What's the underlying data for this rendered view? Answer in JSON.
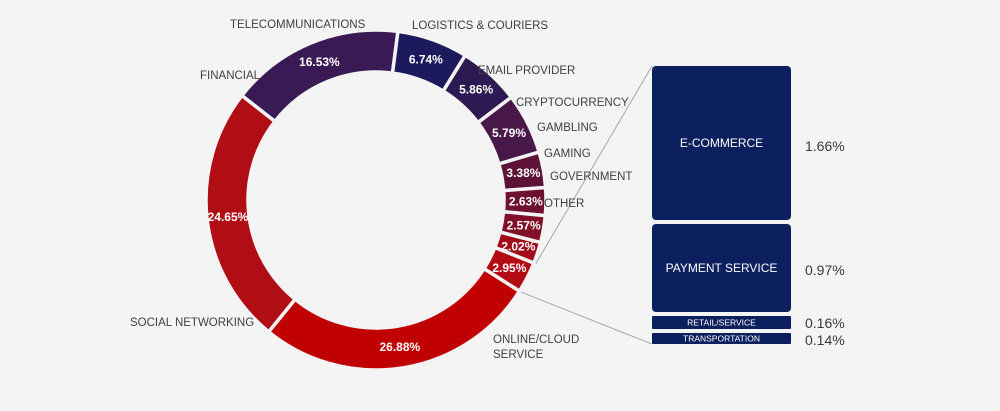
{
  "chart_data": [
    {
      "type": "pie",
      "variant": "donut",
      "series": [
        {
          "label": "ONLINE/CLOUD SERVICE",
          "value": 26.88,
          "value_label": "26.88%",
          "color": "#c00000"
        },
        {
          "label": "SOCIAL NETWORKING",
          "value": 24.65,
          "value_label": "24.65%",
          "color": "#b00d14"
        },
        {
          "label": "FINANCIAL",
          "value": 16.53,
          "value_label": "16.53%",
          "color": "#3a1a55"
        },
        {
          "label": "TELECOMMUNICATIONS",
          "value": 6.74,
          "value_label": "6.74%",
          "color": "#1c1a5c"
        },
        {
          "label": "LOGISTICS & COURIERS",
          "value": 5.86,
          "value_label": "5.86%",
          "color": "#2e1a52"
        },
        {
          "label": "EMAIL PROVIDER",
          "value": 5.79,
          "value_label": "5.79%",
          "color": "#481848"
        },
        {
          "label": "CRYPTOCURRENCY",
          "value": 3.38,
          "value_label": "3.38%",
          "color": "#5e1238"
        },
        {
          "label": "GAMBLING",
          "value": 2.63,
          "value_label": "2.63%",
          "color": "#6e1030"
        },
        {
          "label": "GAMING",
          "value": 2.57,
          "value_label": "2.57%",
          "color": "#82102a"
        },
        {
          "label": "GOVERNMENT",
          "value": 2.02,
          "value_label": "2.02%",
          "color": "#a00c1c"
        },
        {
          "label": "OTHER",
          "value": 2.95,
          "value_label": "2.95%",
          "color": "#b40a14"
        }
      ]
    },
    {
      "type": "bar",
      "variant": "stacked-breakdown",
      "breakdown_of": "OTHER",
      "categories": [
        "E-COMMERCE",
        "PAYMENT SERVICE",
        "RETAIL/SERVICE",
        "TRANSPORTATION"
      ],
      "values": [
        1.66,
        0.97,
        0.16,
        0.14
      ],
      "value_labels": [
        "1.66%",
        "0.97%",
        "0.16%",
        "0.14%"
      ],
      "color": "#0c1f5e"
    }
  ],
  "colors": {
    "background": "#f4f4f4",
    "breakdown_box": "#0c1f5e",
    "connector": "#a6a6a6",
    "label_text": "#404040"
  }
}
